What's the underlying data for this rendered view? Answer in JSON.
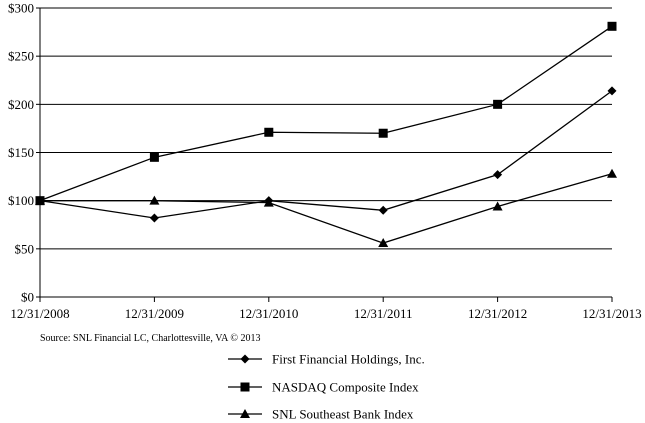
{
  "chart_data": {
    "type": "line",
    "title": "",
    "xlabel": "",
    "ylabel": "",
    "categories": [
      "12/31/2008",
      "12/31/2009",
      "12/31/2010",
      "12/31/2011",
      "12/31/2012",
      "12/31/2013"
    ],
    "ylim": [
      0,
      300
    ],
    "yticks": [
      0,
      50,
      100,
      150,
      200,
      250,
      300
    ],
    "ytick_labels": [
      "$0",
      "$50",
      "$100",
      "$150",
      "$200",
      "$250",
      "$300"
    ],
    "grid": true,
    "legend_position": "bottom",
    "series": [
      {
        "name": "First Financial Holdings, Inc.",
        "marker": "diamond",
        "values": [
          100,
          82,
          100,
          90,
          127,
          214
        ]
      },
      {
        "name": "NASDAQ Composite Index",
        "marker": "square",
        "values": [
          100,
          145,
          171,
          170,
          200,
          281
        ]
      },
      {
        "name": "SNL Southeast Bank Index",
        "marker": "triangle",
        "values": [
          100,
          100,
          98,
          56,
          94,
          128
        ]
      }
    ],
    "source_note": "Source: SNL Financial LC, Charlottesville, VA © 2013"
  }
}
